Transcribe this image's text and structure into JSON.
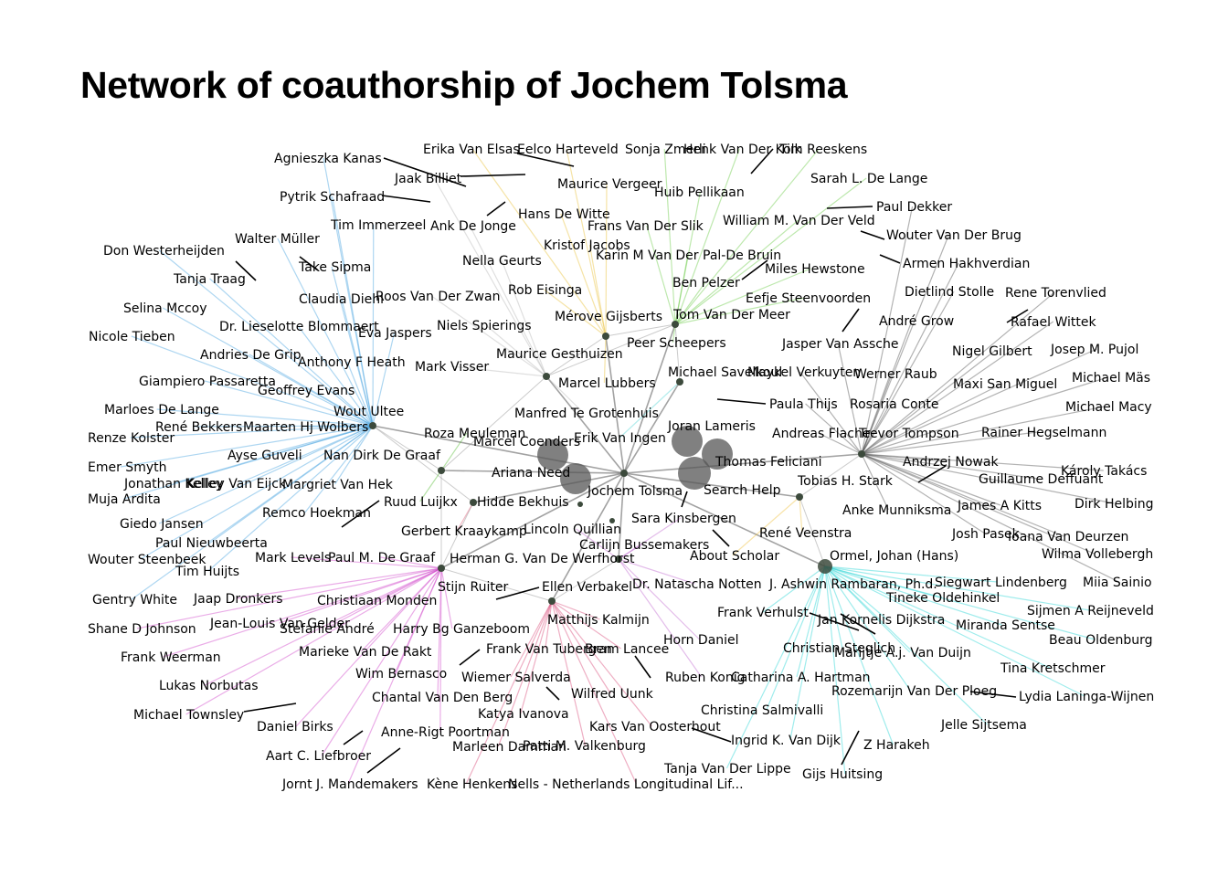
{
  "title": "Network of coauthorship of Jochem Tolsma",
  "hubs": [
    {
      "id": "jochem",
      "label": "Jochem Tolsma",
      "color": "#2f4f2f"
    },
    {
      "id": "wout",
      "label": "Wout Ultee",
      "color": "#4aa3df"
    },
    {
      "id": "nan",
      "label": "Nan Dirk De Graaf",
      "color": "#5bbf3a"
    },
    {
      "id": "stijn",
      "label": "Stijn Ruiter",
      "color": "#d148c9"
    },
    {
      "id": "ellen",
      "label": "Ellen Verbakel",
      "color": "#d94c7a"
    },
    {
      "id": "merove",
      "label": "Mérove Gijsberts",
      "color": "#e8c23a"
    },
    {
      "id": "maurice",
      "label": "Maurice Gesthuizen",
      "color": "#b8b8b8"
    },
    {
      "id": "tom",
      "label": "Tom Van Der Meer",
      "color": "#6ccc4a"
    },
    {
      "id": "michael",
      "label": "Michael Savelkoul",
      "color": "#5ad6d6"
    },
    {
      "id": "hidde",
      "label": "Hidde Bekhuis",
      "color": "#e0607a"
    },
    {
      "id": "ormel",
      "label": "Ormel, Johan (Hans)",
      "color": "#2ad4d4"
    },
    {
      "id": "trevor",
      "label": "Trevor Tompson",
      "color": "#555555"
    },
    {
      "id": "tobias",
      "label": "Tobias H. Stark",
      "color": "#f0c040"
    },
    {
      "id": "herman",
      "label": "Herman G. Van De Werfhorst",
      "color": "#c06ad0"
    }
  ],
  "big_nodes": [
    "Marcel Coenders",
    "Ariana Need",
    "Joran Lameris",
    "Thomas Feliciani",
    "Search Help"
  ],
  "labels": [
    "Agnieszka Kanas",
    "Jaak Billiet",
    "Pytrik Schafraad",
    "Erika Van Elsas",
    "Eelco Harteveld",
    "Sonja Zmerli",
    "Henk Van Der Kolk",
    "Tim Reeskens",
    "Sarah L. De Lange",
    "Maurice Vergeer",
    "Huib Pellikaan",
    "Paul Dekker",
    "Tim Immerzeel",
    "Ank De Jonge",
    "Hans De Witte",
    "Frans Van Der Slik",
    "William M. Van Der Veld",
    "Wouter Van Der Brug",
    "Walter Müller",
    "Don Westerheijden",
    "Kristof Jacobs",
    "Karin M Van Der Pal-De Bruin",
    "Take Sipma",
    "Nella Geurts",
    "Miles Hewstone",
    "Armen Hakhverdian",
    "Tanja Traag",
    "Ben Pelzer",
    "Claudia Diehl",
    "Roos Van Der Zwan",
    "Rob Eisinga",
    "Eefje Steenvoorden",
    "Dietlind Stolle",
    "Rene Torenvlied",
    "Selina Mccoy",
    "Dr. Lieselotte Blommaert",
    "Niels Spierings",
    "André Grow",
    "Rafael Wittek",
    "Nicole Tieben",
    "Eva Jaspers",
    "Peer Scheepers",
    "Jasper Van Assche",
    "Andries De Grip",
    "Anthony F Heath",
    "Mark Visser",
    "Nigel Gilbert",
    "Josep M. Pujol",
    "Giampiero Passaretta",
    "Marcel Lubbers",
    "Maykel Verkuyten",
    "Werner Raub",
    "Maxi San Miguel",
    "Michael Mäs",
    "Geoffrey Evans",
    "Paula Thijs",
    "Rosaria Conte",
    "Michael Macy",
    "Marloes De Lange",
    "Manfred Te Grotenhuis",
    "René Bekkers",
    "Maarten Hj Wolbers",
    "Roza Meuleman",
    "Andreas Flache",
    "Rainer Hegselmann",
    "Renze Kolster",
    "Erik Van Ingen",
    "Ayse Guveli",
    "Andrzej Nowak",
    "Emer Smyth",
    "Károly Takács",
    "Jonathan Kelley",
    "Kelley Van Eijck",
    "Margriet Van Hek",
    "Guillaume Deffuant",
    "Muja Ardita",
    "Ruud Luijkx",
    "Anke Munniksma",
    "James A Kitts",
    "Dirk Helbing",
    "Remco Hoekman",
    "Lincoln Quillian",
    "Sara Kinsbergen",
    "Giedo Jansen",
    "Gerbert Kraaykamp",
    "René Veenstra",
    "Josh Pasek",
    "Ioana Van Deurzen",
    "Paul Nieuwbeerta",
    "Carlijn Bussemakers",
    "Wilma Vollebergh",
    "Wouter Steenbeek",
    "Mark Levels",
    "Paul M. De Graaf",
    "About Scholar",
    "Tim Huijts",
    "Siegwart Lindenberg",
    "Miia Sainio",
    "Dr. Natascha Notten",
    "J. Ashwin Rambaran, Ph.d.",
    "Gentry White",
    "Jaap Dronkers",
    "Christiaan Monden",
    "Tineke Oldehinkel",
    "Sijmen A Reijneveld",
    "Frank Verhulst",
    "Matthijs Kalmijn",
    "Miranda Sentse",
    "Shane D Johnson",
    "Jean-Louis Van Gelder",
    "Stefanie André",
    "Harry Bg Ganzeboom",
    "Jan Kornelis Dijkstra",
    "Beau Oldenburg",
    "Horn Daniel",
    "Frank Weerman",
    "Marieke Van De Rakt",
    "Frank Van Tubergen",
    "Bram Lancee",
    "Christian Steglich",
    "Marijtje A.j. Van Duijn",
    "Tina Kretschmer",
    "Wim Bernasco",
    "Ruben Konig",
    "Catharina A. Hartman",
    "Lukas Norbutas",
    "Wiemer Salverda",
    "Chantal Van Den Berg",
    "Wilfred Uunk",
    "Rozemarijn Van Der Ploeg",
    "Lydia Laninga-Wijnen",
    "Christina Salmivalli",
    "Michael Townsley",
    "Katya Ivanova",
    "Daniel Birks",
    "Kars Van Oosterhout",
    "Jelle Sijtsema",
    "Anne-Rigt Poortman",
    "Ingrid K. Van Dijk",
    "Marleen Damman",
    "Patti M. Valkenburg",
    "Z Harakeh",
    "Aart C. Liefbroer",
    "Tanja Van Der Lippe",
    "Gijs Huitsing",
    "Jornt J. Mandemakers",
    "Kène Henkens",
    "Nells - Netherlands Longitudinal Lif..."
  ],
  "colors": {
    "hub_node": "#3c4a3c",
    "big_node": "#555555",
    "leader_line": "#000000"
  }
}
